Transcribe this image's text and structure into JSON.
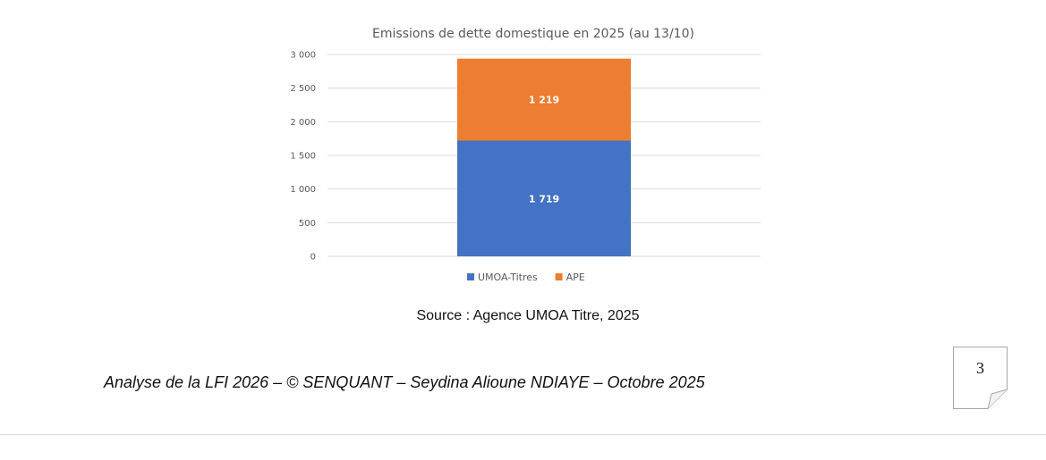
{
  "chart_data": {
    "type": "bar",
    "stacked": true,
    "title": "Emissions de dette domestique en 2025 (au 13/10)",
    "categories": [
      ""
    ],
    "series": [
      {
        "name": "UMOA-Titres",
        "values": [
          1719
        ],
        "value_labels": [
          "1 719"
        ],
        "color": "#4472c4"
      },
      {
        "name": "APE",
        "values": [
          1219
        ],
        "value_labels": [
          "1 219"
        ],
        "color": "#ed7d31"
      }
    ],
    "yticks": [
      "0",
      "500",
      "1 000",
      "1 500",
      "2 000",
      "2 500",
      "3 000"
    ],
    "ylim": [
      0,
      3000
    ],
    "grid": true,
    "legend_position": "bottom"
  },
  "source_text": "Source : Agence UMOA Titre, 2025",
  "footer_text": "Analyse de la LFI 2026 – © SENQUANT – Seydina Alioune NDIAYE – Octobre 2025",
  "page_number": "3"
}
